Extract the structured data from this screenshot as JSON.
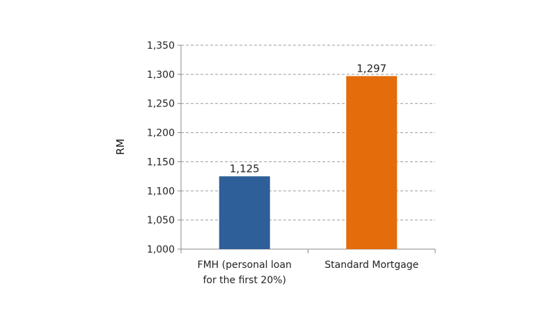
{
  "chart_data": {
    "type": "bar",
    "title": "",
    "xlabel": "",
    "ylabel": "RM",
    "ylim": [
      1000,
      1350
    ],
    "yticks": [
      "1,000",
      "1,050",
      "1,100",
      "1,150",
      "1,200",
      "1,250",
      "1,300",
      "1,350"
    ],
    "ytick_values": [
      1000,
      1050,
      1100,
      1150,
      1200,
      1250,
      1300,
      1350
    ],
    "grid": "horizontal dashed",
    "legend": "none",
    "categories": [
      [
        "FMH (personal loan",
        "for the first 20%)"
      ],
      [
        "Standard Mortgage"
      ]
    ],
    "values": [
      1125,
      1297
    ],
    "data_labels": [
      "1,125",
      "1,297"
    ],
    "colors": [
      "#2f5f98",
      "#e46c0a"
    ]
  }
}
